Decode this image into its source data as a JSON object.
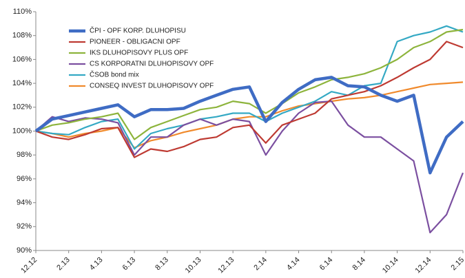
{
  "chart_data": {
    "type": "line",
    "categories": [
      "12.12",
      null,
      "2.13",
      null,
      "4.13",
      null,
      "6.13",
      null,
      "8.13",
      null,
      "10.13",
      null,
      "12.13",
      null,
      "2.14",
      null,
      "4.14",
      null,
      "6.14",
      null,
      "8.14",
      null,
      "10.14",
      null,
      "12.14",
      null,
      "2.15"
    ],
    "series": [
      {
        "name": "ČPI - OPF KORP. DLUHOPISU",
        "color": "#3f6cc4",
        "values": [
          100,
          101,
          101.3,
          101.6,
          101.9,
          102.2,
          101.2,
          101.8,
          101.8,
          101.9,
          102.5,
          103,
          103.5,
          103.7,
          100.8,
          102.4,
          103.5,
          104.3,
          104.5,
          103.8,
          103.7,
          103,
          102.5,
          103,
          96.5,
          99.5,
          100.8
        ]
      },
      {
        "name": "PIONEER - OBLIGACNI OPF",
        "color": "#be3a32",
        "values": [
          100,
          99.5,
          99.3,
          99.7,
          100.2,
          100.3,
          97.8,
          98.5,
          98.3,
          98.7,
          99.3,
          99.5,
          100.3,
          100.5,
          99,
          100.5,
          101,
          101.5,
          102.7,
          103,
          103.3,
          103.8,
          104.5,
          105.3,
          106,
          107.5,
          107
        ]
      },
      {
        "name": "IKS DLUHOPISOVY PLUS OPF",
        "color": "#8db43c",
        "values": [
          100,
          100.5,
          100.7,
          101,
          101.2,
          101.5,
          99.3,
          100.3,
          100.8,
          101.3,
          101.8,
          102,
          102.5,
          102.3,
          101.5,
          102.3,
          103.2,
          103.7,
          104.3,
          104.5,
          104.8,
          105.3,
          106,
          107,
          107.5,
          108.3,
          108.5
        ]
      },
      {
        "name": "CS KORPORATNI DLUHOPISOVY OPF",
        "color": "#7b4fa0",
        "values": [
          100,
          101.2,
          100.8,
          101.1,
          101,
          100.7,
          98,
          99.5,
          99.5,
          100.5,
          101,
          100.5,
          101,
          100.8,
          98,
          100,
          101.5,
          102.4,
          102.5,
          100.5,
          99.5,
          99.5,
          98.5,
          97.5,
          91.5,
          93,
          96.5
        ]
      },
      {
        "name": "ČSOB bond mix",
        "color": "#34a9c4",
        "values": [
          100,
          99.8,
          99.7,
          100.3,
          100.8,
          101,
          98.5,
          99.8,
          100.2,
          100.5,
          101,
          101.2,
          101.5,
          101.5,
          100.8,
          101.5,
          102,
          102.5,
          103.3,
          103,
          103.8,
          104,
          107.5,
          108,
          108.3,
          108.8,
          108.3
        ]
      },
      {
        "name": "CONSEQ INVEST DLUHOPISOVY OPF",
        "color": "#f08a2c",
        "values": [
          100,
          99.8,
          99.5,
          99.8,
          100,
          100.3,
          98.6,
          99.2,
          99.5,
          99.9,
          100.2,
          100.5,
          101,
          101.2,
          101.2,
          101.7,
          102.1,
          102.3,
          102.5,
          102.7,
          102.8,
          103,
          103.3,
          103.6,
          103.9,
          104,
          104.1
        ]
      }
    ],
    "ylim": [
      90,
      110
    ],
    "yticks": [
      {
        "value": 90,
        "label": "90%"
      },
      {
        "value": 92,
        "label": "92%"
      },
      {
        "value": 94,
        "label": "94%"
      },
      {
        "value": 96,
        "label": "96%"
      },
      {
        "value": 98,
        "label": "98%"
      },
      {
        "value": 100,
        "label": "100%"
      },
      {
        "value": 102,
        "label": "102%"
      },
      {
        "value": 104,
        "label": "104%"
      },
      {
        "value": 106,
        "label": "106%"
      },
      {
        "value": 108,
        "label": "108%"
      },
      {
        "value": 110,
        "label": "110%"
      }
    ],
    "grid": false,
    "legend": "upper-left"
  }
}
